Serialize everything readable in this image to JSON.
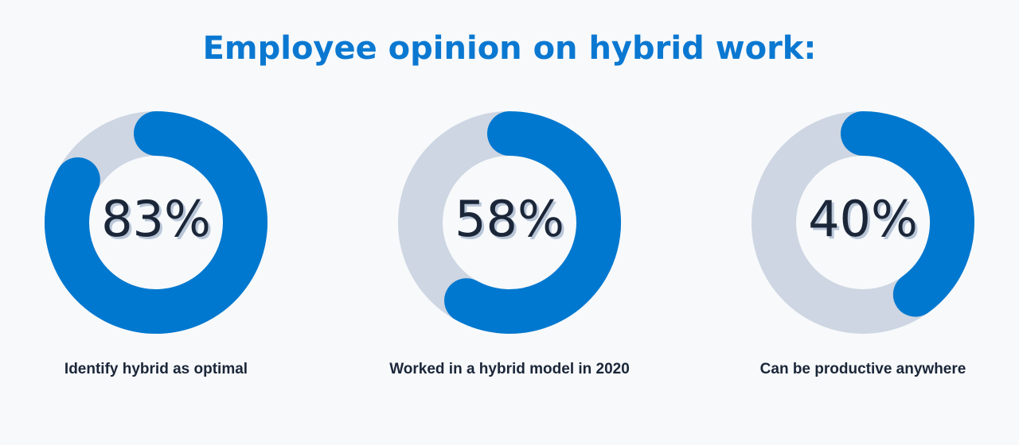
{
  "header": {
    "title": "Employee opinion on hybrid work:"
  },
  "chart_data": [
    {
      "type": "donut",
      "values": [
        83
      ],
      "value_labels": [
        "83%"
      ],
      "label": "Identify hybrid as optimal",
      "color": "#0078cf",
      "track_color": "#cdd6e2"
    },
    {
      "type": "donut",
      "values": [
        58
      ],
      "value_labels": [
        "58%"
      ],
      "label": "Worked in a hybrid model in 2020",
      "color": "#0078cf",
      "track_color": "#cdd6e2"
    },
    {
      "type": "donut",
      "values": [
        40
      ],
      "value_labels": [
        "40%"
      ],
      "label": "Can be productive anywhere",
      "color": "#0078cf",
      "track_color": "#cdd6e2"
    }
  ]
}
